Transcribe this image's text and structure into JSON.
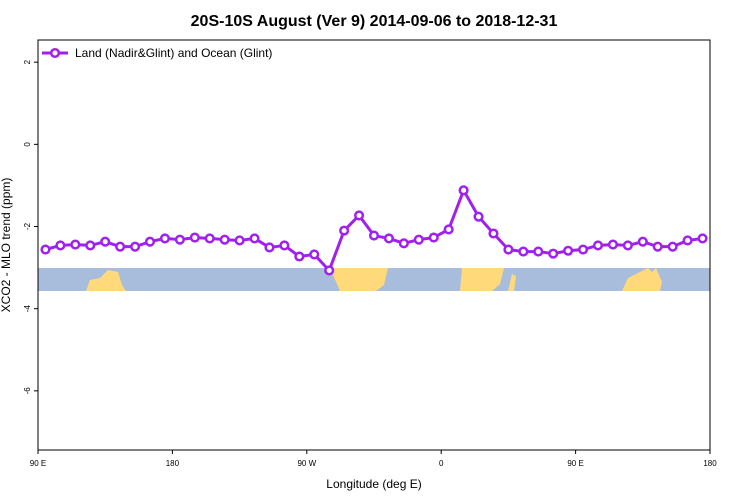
{
  "chart_data": {
    "type": "line",
    "title": "20S-10S August (Ver 9)   2014-09-06 to 2018-12-31",
    "x_label": "Longitude (deg E)",
    "y_label": "XCO2 - MLO trend (ppm)",
    "x": [
      95,
      105,
      115,
      125,
      135,
      145,
      155,
      165,
      175,
      185,
      195,
      205,
      215,
      225,
      235,
      245,
      255,
      265,
      275,
      285,
      295,
      305,
      315,
      325,
      335,
      345,
      355,
      365,
      375,
      385,
      395,
      405,
      415,
      425,
      435,
      445,
      455,
      465,
      475,
      485,
      495,
      505,
      515,
      525,
      535
    ],
    "series": [
      {
        "name": "Land (Nadir&Glint) and Ocean (Glint)",
        "color": "#a020f0",
        "values": [
          -2.56,
          -2.46,
          -2.44,
          -2.46,
          -2.37,
          -2.49,
          -2.49,
          -2.37,
          -2.29,
          -2.32,
          -2.27,
          -2.29,
          -2.32,
          -2.34,
          -2.29,
          -2.51,
          -2.46,
          -2.73,
          -2.68,
          -3.07,
          -2.1,
          -1.73,
          -2.22,
          -2.29,
          -2.41,
          -2.32,
          -2.27,
          -2.07,
          -1.12,
          -1.76,
          -2.17,
          -2.56,
          -2.61,
          -2.61,
          -2.66,
          -2.59,
          -2.56,
          -2.46,
          -2.44,
          -2.46,
          -2.37,
          -2.49,
          -2.49,
          -2.34,
          -2.29
        ]
      }
    ],
    "xlim": [
      90,
      540
    ],
    "xticks": [
      {
        "value": 90,
        "label": "90 E"
      },
      180,
      {
        "value": 270,
        "label": "90 W"
      },
      {
        "value": 360,
        "label": "0"
      },
      {
        "value": 450,
        "label": "90 E"
      },
      {
        "value": 540,
        "label": "180"
      }
    ],
    "ylim": [
      -7.44,
      2.54
    ],
    "yticks": [
      -6,
      -4,
      -2,
      0,
      2
    ],
    "legend": "top-left"
  }
}
